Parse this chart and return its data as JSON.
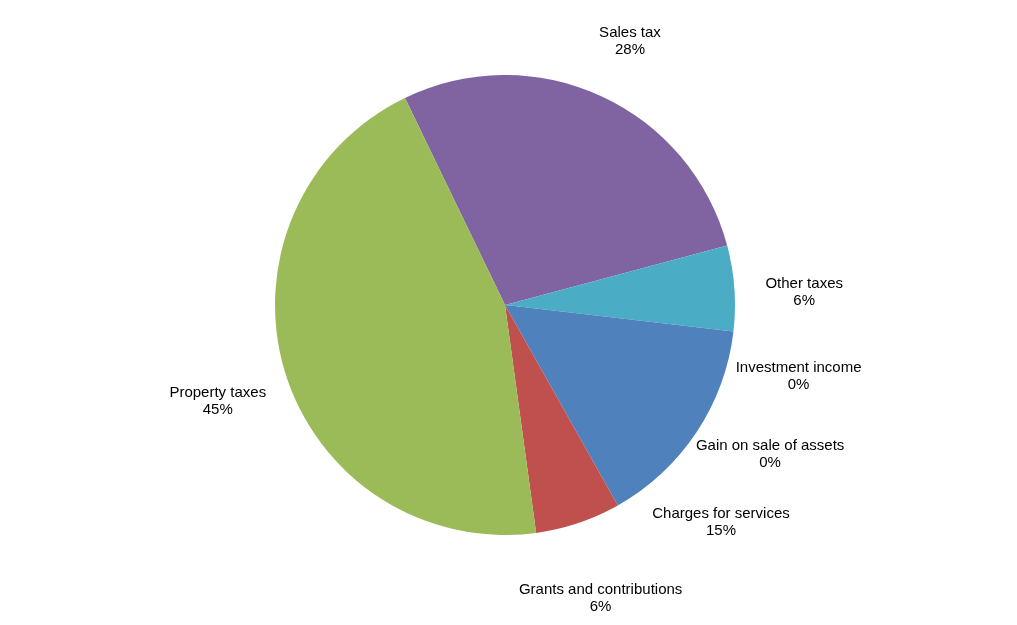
{
  "chart_data": {
    "type": "pie",
    "categories": [
      "Sales tax",
      "Other taxes",
      "Investment income",
      "Gain on sale of assets",
      "Charges for services",
      "Grants and contributions",
      "Property taxes"
    ],
    "values": [
      28,
      6,
      0,
      0,
      15,
      6,
      45
    ],
    "value_labels": [
      "28%",
      "6%",
      "0%",
      "0%",
      "15%",
      "6%",
      "45%"
    ],
    "colors": [
      "#8064a2",
      "#4bacc6",
      "#f79646",
      "#1f497d",
      "#4f81bd",
      "#c0504d",
      "#9bbb59"
    ],
    "legend": false
  }
}
